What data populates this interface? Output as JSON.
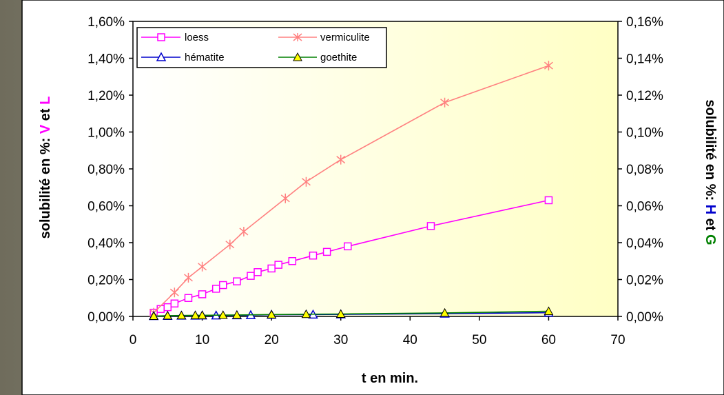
{
  "chart_data": {
    "type": "line",
    "x": [
      3,
      4,
      5,
      6,
      7,
      8,
      9,
      10,
      11,
      12,
      13,
      14,
      15,
      16,
      17,
      18,
      19,
      20,
      21,
      22,
      24,
      26,
      28,
      30,
      31,
      45,
      60
    ],
    "xlabel": "t en min.",
    "xlim": [
      0,
      70
    ],
    "xticks": [
      "0",
      "10",
      "20",
      "30",
      "40",
      "50",
      "60",
      "70"
    ],
    "ylabel_left": {
      "prefix": "solubilité en %: ",
      "v": "V",
      "et": " et ",
      "l": "L"
    },
    "ylabel_right": {
      "prefix": "solubilité en %: ",
      "h": "H",
      "et": " et ",
      "g": "G"
    },
    "ylim_left": [
      0,
      1.6
    ],
    "ylim_right": [
      0,
      0.16
    ],
    "yticks_left": [
      "0,00%",
      "0,20%",
      "0,40%",
      "0,60%",
      "0,80%",
      "1,00%",
      "1,20%",
      "1,40%",
      "1,60%"
    ],
    "yticks_right": [
      "0,00%",
      "0,02%",
      "0,04%",
      "0,06%",
      "0,08%",
      "0,10%",
      "0,12%",
      "0,14%",
      "0,16%"
    ],
    "grid": false,
    "legend_position": "top-left",
    "series": [
      {
        "name": "loess",
        "axis": "left",
        "color": "#ff00ff",
        "marker": "square",
        "points": [
          [
            3,
            0.02
          ],
          [
            4,
            0.04
          ],
          [
            5,
            0.05
          ],
          [
            6,
            0.07
          ],
          [
            8,
            0.1
          ],
          [
            10,
            0.12
          ],
          [
            12,
            0.15
          ],
          [
            13,
            0.17
          ],
          [
            15,
            0.19
          ],
          [
            17,
            0.22
          ],
          [
            18,
            0.24
          ],
          [
            20,
            0.26
          ],
          [
            21,
            0.28
          ],
          [
            23,
            0.3
          ],
          [
            26,
            0.33
          ],
          [
            28,
            0.35
          ],
          [
            31,
            0.38
          ],
          [
            43,
            0.49
          ],
          [
            60,
            0.63
          ]
        ]
      },
      {
        "name": "vermiculite",
        "axis": "left",
        "color": "#ff8080",
        "marker": "star",
        "points": [
          [
            3,
            0.02
          ],
          [
            6,
            0.13
          ],
          [
            8,
            0.21
          ],
          [
            10,
            0.27
          ],
          [
            14,
            0.39
          ],
          [
            16,
            0.46
          ],
          [
            22,
            0.64
          ],
          [
            25,
            0.73
          ],
          [
            30,
            0.85
          ],
          [
            45,
            1.16
          ],
          [
            60,
            1.36
          ]
        ]
      },
      {
        "name": "hématite",
        "axis": "right",
        "color": "#0000cc",
        "marker": "triangle",
        "points": [
          [
            3,
            0.0002
          ],
          [
            5,
            0.0003
          ],
          [
            7,
            0.0004
          ],
          [
            9,
            0.0004
          ],
          [
            10,
            0.0005
          ],
          [
            12,
            0.0005
          ],
          [
            15,
            0.0006
          ],
          [
            17,
            0.0007
          ],
          [
            20,
            0.0009
          ],
          [
            26,
            0.001
          ],
          [
            30,
            0.0011
          ],
          [
            45,
            0.0015
          ],
          [
            60,
            0.002
          ]
        ]
      },
      {
        "name": "goethite",
        "axis": "right",
        "color": "#008000",
        "marker": "triangle",
        "points": [
          [
            3,
            0.0002
          ],
          [
            5,
            0.0004
          ],
          [
            7,
            0.0005
          ],
          [
            9,
            0.0006
          ],
          [
            10,
            0.0006
          ],
          [
            13,
            0.0007
          ],
          [
            15,
            0.0008
          ],
          [
            20,
            0.001
          ],
          [
            25,
            0.0012
          ],
          [
            30,
            0.0013
          ],
          [
            45,
            0.0019
          ],
          [
            60,
            0.0028
          ]
        ]
      }
    ]
  },
  "legend": {
    "labels": [
      "loess",
      "vermiculite",
      "hématite",
      "goethite"
    ]
  }
}
